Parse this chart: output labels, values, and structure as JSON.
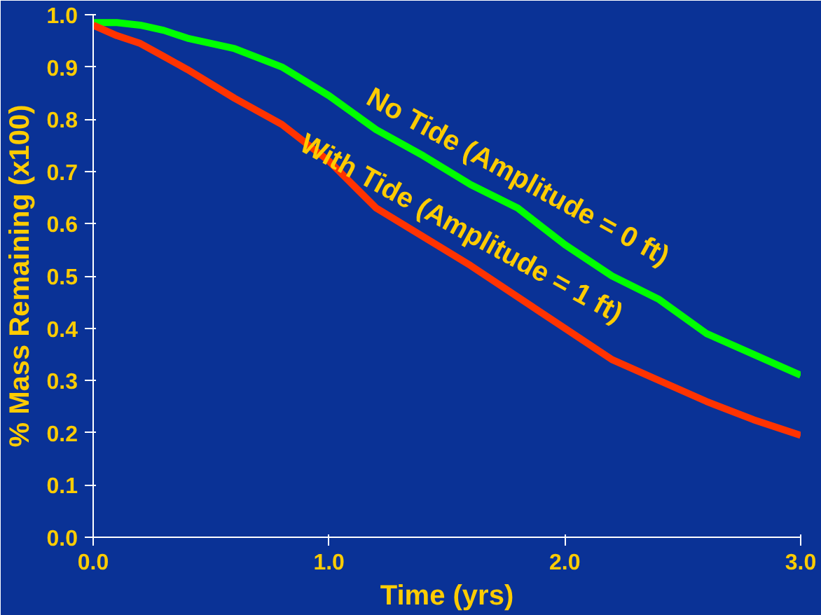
{
  "chart_data": {
    "type": "line",
    "xlabel": "Time (yrs)",
    "ylabel": "% Mass Remaining (x100)",
    "xlim": [
      0,
      3
    ],
    "ylim": [
      0,
      1
    ],
    "xticks": [
      {
        "value": 0,
        "label": "0.0"
      },
      {
        "value": 1,
        "label": "1.0"
      },
      {
        "value": 2,
        "label": "2.0"
      },
      {
        "value": 3,
        "label": "3.0"
      }
    ],
    "yticks": [
      {
        "value": 0,
        "label": "0.0"
      },
      {
        "value": 0.1,
        "label": "0.1"
      },
      {
        "value": 0.2,
        "label": "0.2"
      },
      {
        "value": 0.3,
        "label": "0.3"
      },
      {
        "value": 0.4,
        "label": "0.4"
      },
      {
        "value": 0.5,
        "label": "0.5"
      },
      {
        "value": 0.6,
        "label": "0.6"
      },
      {
        "value": 0.7,
        "label": "0.7"
      },
      {
        "value": 0.8,
        "label": "0.8"
      },
      {
        "value": 0.9,
        "label": "0.9"
      },
      {
        "value": 1,
        "label": "1.0"
      }
    ],
    "grid": false,
    "marker": "none",
    "line_style": "solid",
    "series": [
      {
        "color": "#00ff00",
        "x": [
          0,
          0.1,
          0.2,
          0.3,
          0.4,
          0.6,
          0.8,
          1.0,
          1.2,
          1.4,
          1.6,
          1.8,
          2.0,
          2.2,
          2.4,
          2.6,
          2.8,
          3.0
        ],
        "values": [
          0.985,
          0.985,
          0.98,
          0.97,
          0.955,
          0.935,
          0.9,
          0.845,
          0.78,
          0.73,
          0.675,
          0.63,
          0.56,
          0.5,
          0.455,
          0.39,
          0.35,
          0.31
        ]
      },
      {
        "color": "#ff3300",
        "x": [
          0,
          0.1,
          0.2,
          0.3,
          0.4,
          0.6,
          0.8,
          1.0,
          1.2,
          1.4,
          1.6,
          1.8,
          2.0,
          2.2,
          2.4,
          2.6,
          2.8,
          3.0
        ],
        "values": [
          0.98,
          0.96,
          0.945,
          0.92,
          0.895,
          0.84,
          0.79,
          0.72,
          0.63,
          0.575,
          0.52,
          0.46,
          0.4,
          0.34,
          0.3,
          0.26,
          0.225,
          0.195
        ]
      }
    ],
    "annotations": [
      "No Tide (Amplitude = 0 ft)",
      "With Tide (Amplitude = 1 ft)"
    ]
  }
}
